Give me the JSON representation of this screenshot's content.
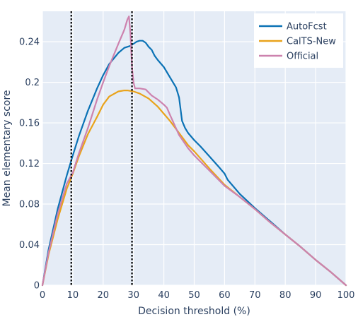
{
  "chart_data": {
    "type": "line",
    "xlabel": "Decision threshold (%)",
    "ylabel": "Mean elementary score",
    "xlim": [
      0,
      100
    ],
    "ylim": [
      0,
      0.27
    ],
    "x_ticks": [
      0,
      10,
      20,
      30,
      40,
      50,
      60,
      70,
      80,
      90,
      100
    ],
    "x_tick_labels": [
      "0",
      "10",
      "20",
      "30",
      "40",
      "50",
      "60",
      "70",
      "80",
      "90",
      "100"
    ],
    "y_ticks": [
      0,
      0.04,
      0.08,
      0.12,
      0.16,
      0.2,
      0.24
    ],
    "y_tick_labels": [
      "0",
      "0.04",
      "0.08",
      "0.12",
      "0.16",
      "0.2",
      "0.24"
    ],
    "grid": true,
    "background": "#e5ecf6",
    "legend_position": "top-right",
    "vertical_reference_lines": [
      9.5,
      29.5
    ],
    "series": [
      {
        "name": "AutoFcst",
        "color": "#0b72b5",
        "x": [
          0,
          2,
          5,
          8,
          10,
          12,
          15,
          18,
          20,
          22,
          25,
          27,
          29,
          30,
          31,
          32,
          33,
          34,
          35,
          36,
          37,
          38,
          40,
          42,
          44,
          45,
          46,
          47,
          48,
          50,
          52,
          55,
          58,
          60,
          61,
          65,
          70,
          75,
          80,
          85,
          90,
          95,
          100
        ],
        "y": [
          0,
          0.035,
          0.075,
          0.108,
          0.128,
          0.147,
          0.172,
          0.194,
          0.207,
          0.218,
          0.229,
          0.234,
          0.236,
          0.238,
          0.24,
          0.241,
          0.241,
          0.239,
          0.235,
          0.232,
          0.226,
          0.222,
          0.215,
          0.205,
          0.195,
          0.185,
          0.162,
          0.155,
          0.15,
          0.143,
          0.137,
          0.127,
          0.117,
          0.11,
          0.104,
          0.09,
          0.076,
          0.063,
          0.05,
          0.038,
          0.025,
          0.013,
          0
        ]
      },
      {
        "name": "CalTS-New",
        "color": "#e9a31b",
        "x": [
          0,
          2,
          5,
          8,
          10,
          12,
          15,
          18,
          20,
          22,
          25,
          27,
          28,
          30,
          32,
          35,
          38,
          40,
          42,
          45,
          48,
          50,
          55,
          60,
          65,
          70,
          75,
          80,
          85,
          90,
          95,
          100
        ],
        "y": [
          0,
          0.03,
          0.065,
          0.095,
          0.11,
          0.127,
          0.149,
          0.166,
          0.178,
          0.186,
          0.191,
          0.192,
          0.192,
          0.191,
          0.189,
          0.184,
          0.176,
          0.169,
          0.162,
          0.15,
          0.138,
          0.132,
          0.115,
          0.099,
          0.087,
          0.075,
          0.062,
          0.05,
          0.038,
          0.025,
          0.013,
          0
        ]
      },
      {
        "name": "Official",
        "color": "#cd82ae",
        "x": [
          0,
          2,
          5,
          8,
          10,
          12,
          15,
          18,
          20,
          22,
          25,
          27,
          28,
          28.5,
          29,
          29.5,
          30,
          30.5,
          32,
          34,
          35,
          36,
          38,
          40,
          41,
          42,
          45,
          48,
          50,
          55,
          60,
          65,
          70,
          75,
          80,
          85,
          90,
          95,
          100
        ],
        "y": [
          0,
          0.032,
          0.07,
          0.1,
          0.111,
          0.13,
          0.155,
          0.183,
          0.2,
          0.216,
          0.238,
          0.252,
          0.262,
          0.265,
          0.247,
          0.215,
          0.2,
          0.194,
          0.194,
          0.193,
          0.19,
          0.187,
          0.183,
          0.178,
          0.175,
          0.168,
          0.148,
          0.135,
          0.128,
          0.113,
          0.098,
          0.087,
          0.075,
          0.062,
          0.05,
          0.038,
          0.025,
          0.013,
          0
        ]
      }
    ]
  }
}
